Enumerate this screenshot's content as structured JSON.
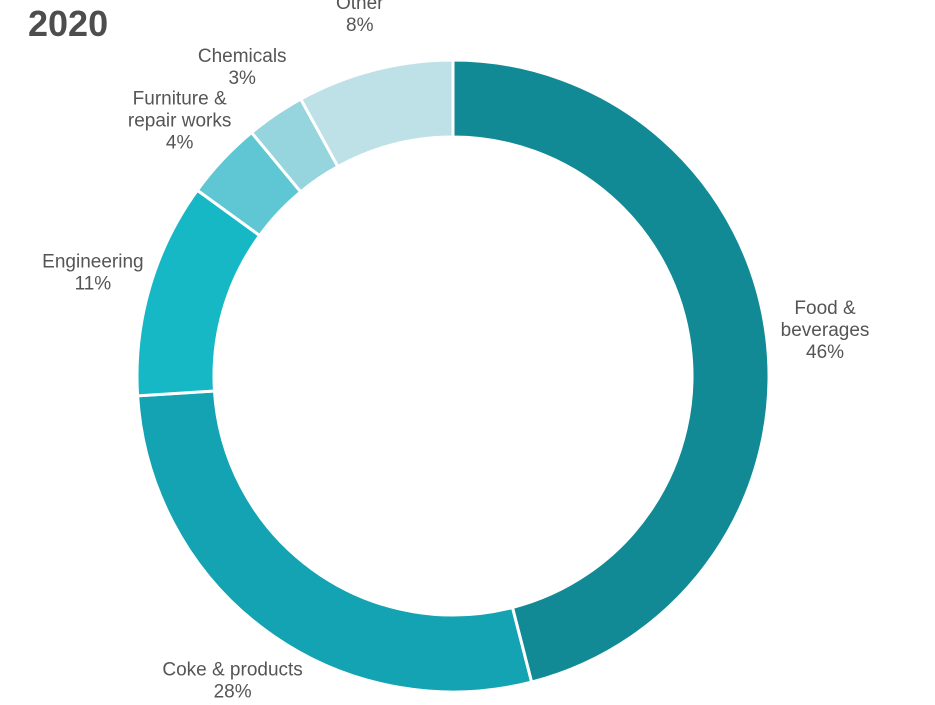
{
  "chart_data": {
    "type": "pie",
    "variant": "donut",
    "title": "2020",
    "slices": [
      {
        "name": "Food & beverages",
        "label_lines": [
          "Food &",
          "beverages",
          "46%"
        ],
        "value": 46,
        "color": "#118a95"
      },
      {
        "name": "Coke & products",
        "label_lines": [
          "Coke & products",
          "28%"
        ],
        "value": 28,
        "color": "#13a3b2"
      },
      {
        "name": "Engineering",
        "label_lines": [
          "Engineering",
          "11%"
        ],
        "value": 11,
        "color": "#17b8c6"
      },
      {
        "name": "Furniture & repair works",
        "label_lines": [
          "Furniture &",
          "repair works",
          "4%"
        ],
        "value": 4,
        "color": "#5ec7d3"
      },
      {
        "name": "Chemicals",
        "label_lines": [
          "Chemicals",
          "3%"
        ],
        "value": 3,
        "color": "#97d5de"
      },
      {
        "name": "Other",
        "label_lines": [
          "Other",
          "8%"
        ],
        "value": 8,
        "color": "#bde1e7"
      }
    ],
    "legend": "none",
    "start_position": "top",
    "direction": "clockwise"
  }
}
